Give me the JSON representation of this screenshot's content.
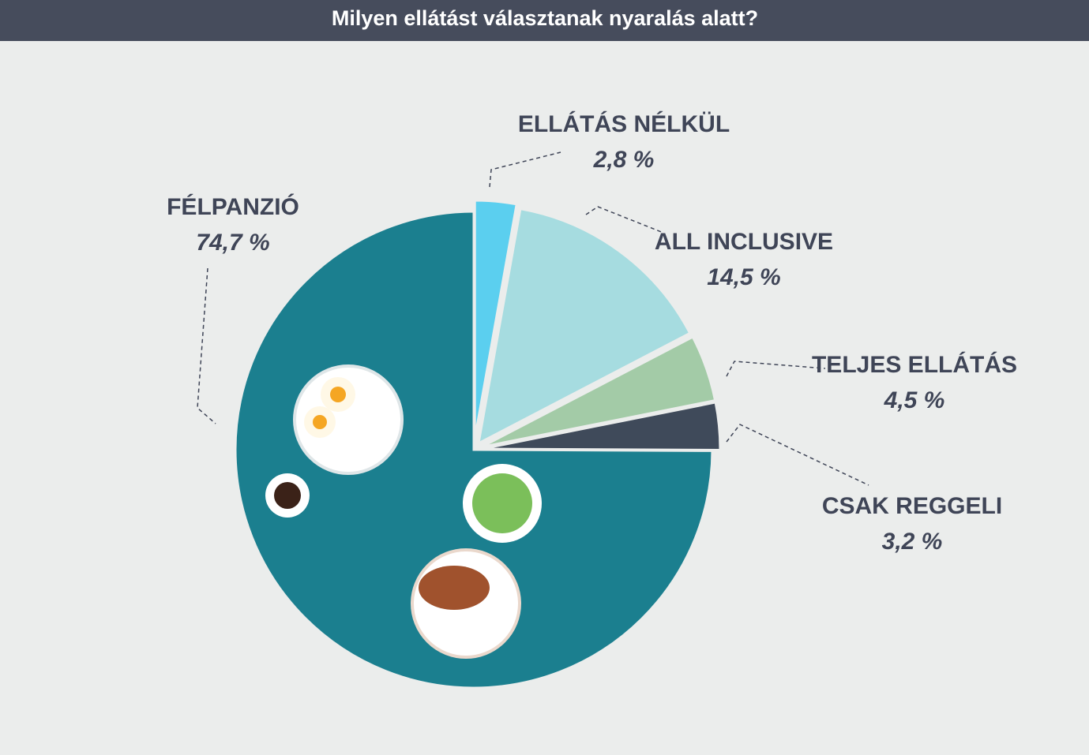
{
  "chart_data": {
    "type": "pie",
    "title": "Milyen ellátást választanak nyaralás alatt?",
    "categories": [
      "ELLÁTÁS NÉLKÜL",
      "ALL INCLUSIVE",
      "TELJES ELLÁTÁS",
      "CSAK REGGELI",
      "FÉLPANZIÓ"
    ],
    "values": [
      2.8,
      14.5,
      4.5,
      3.2,
      74.7
    ],
    "value_labels": [
      "2,8 %",
      "14,5 %",
      "4,5 %",
      "3,2 %",
      "74,7 %"
    ],
    "colors": [
      "#5bcfef",
      "#a6dce0",
      "#a3cba7",
      "#3f4a5a",
      "#1b7f8f"
    ]
  }
}
